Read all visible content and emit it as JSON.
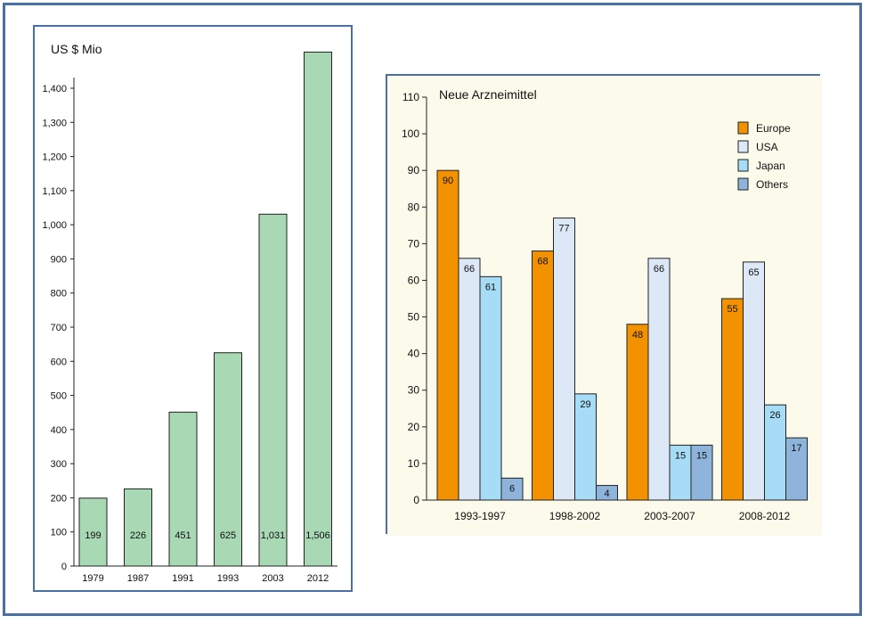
{
  "chart_data": [
    {
      "type": "bar",
      "title": "US $ Mio",
      "categories": [
        "1979",
        "1987",
        "1991",
        "1993",
        "2003",
        "2012"
      ],
      "values": [
        199,
        226,
        451,
        625,
        1031,
        1506
      ],
      "value_labels": [
        "199",
        "226",
        "451",
        "625",
        "1,031",
        "1,506"
      ],
      "yticks": [
        "0",
        "100",
        "200",
        "300",
        "400",
        "500",
        "600",
        "700",
        "800",
        "900",
        "1,000",
        "1,100",
        "1,200",
        "1,300",
        "1,400"
      ],
      "ylim": [
        0,
        1400
      ],
      "grid": false,
      "color": "#a8d8b4"
    },
    {
      "type": "bar",
      "title": "Neue Arzneimittel",
      "categories": [
        "1993-1997",
        "1998-2002",
        "2003-2007",
        "2008-2012"
      ],
      "series": [
        {
          "name": "Europe",
          "values": [
            90,
            68,
            48,
            55
          ],
          "color": "#f39200"
        },
        {
          "name": "USA",
          "values": [
            66,
            77,
            66,
            65
          ],
          "color": "#dde8f6"
        },
        {
          "name": "Japan",
          "values": [
            61,
            29,
            15,
            26
          ],
          "color": "#a6dcf5"
        },
        {
          "name": "Others",
          "values": [
            6,
            4,
            15,
            17
          ],
          "color": "#8fb4dc"
        }
      ],
      "yticks": [
        "0",
        "10",
        "20",
        "30",
        "40",
        "50",
        "60",
        "70",
        "80",
        "90",
        "100",
        "110"
      ],
      "ylim": [
        0,
        110
      ],
      "legend": "top-right",
      "background": "#fbfaeb",
      "grid": false
    }
  ]
}
